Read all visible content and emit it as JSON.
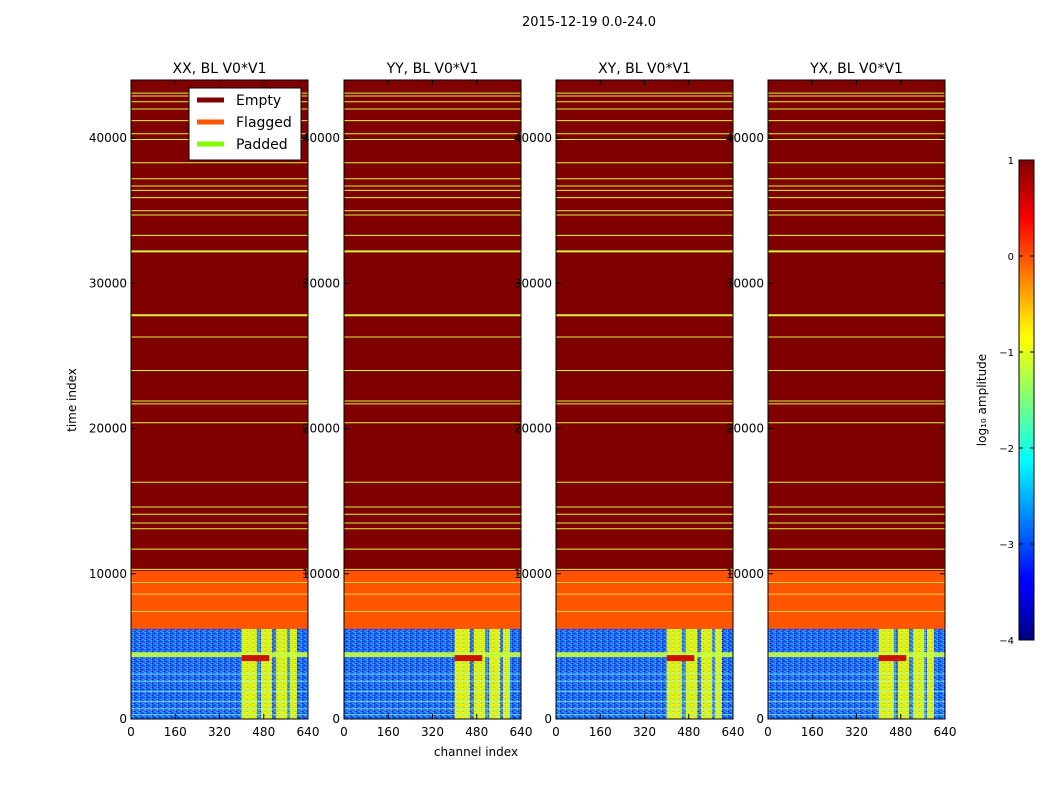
{
  "chart_data": {
    "type": "heatmap",
    "title": "2015-12-19 0.0-24.0",
    "xlabel": "channel index",
    "ylabel": "time index",
    "xlim": [
      0,
      640
    ],
    "ylim": [
      0,
      44000
    ],
    "x_ticks": [
      "0",
      "160",
      "320",
      "480",
      "640"
    ],
    "x_tick_values": [
      0,
      160,
      320,
      480,
      640
    ],
    "y_ticks": [
      "0",
      "10000",
      "20000",
      "30000",
      "40000"
    ],
    "y_tick_values": [
      0,
      10000,
      20000,
      30000,
      40000
    ],
    "panels": [
      {
        "title": "XX, BL V0*V1"
      },
      {
        "title": "YY, BL V0*V1"
      },
      {
        "title": "XY, BL V0*V1"
      },
      {
        "title": "YX, BL V0*V1"
      }
    ],
    "legend": {
      "placement": "top-right of first panel",
      "entries": [
        {
          "label": "Empty",
          "color": "#800000"
        },
        {
          "label": "Flagged",
          "color": "#ff5500"
        },
        {
          "label": "Padded",
          "color": "#7fff00"
        }
      ]
    },
    "colorbar": {
      "label": "log₁₀ amplitude",
      "range": [
        -4,
        1
      ],
      "ticks": [
        "1",
        "0",
        "−1",
        "−2",
        "−3",
        "−4"
      ],
      "tick_values": [
        1,
        0,
        -1,
        -2,
        -3,
        -4
      ],
      "colormap": "jet"
    },
    "regions": {
      "data_time_range": [
        0,
        6200
      ],
      "flagged_time_range": [
        6200,
        10200
      ],
      "empty_time_range": [
        10200,
        44000
      ],
      "high_amplitude_channel_range": [
        400,
        600
      ]
    },
    "padded_rows_time": [
      10300,
      11700,
      13100,
      13500,
      14100,
      14600,
      16300,
      20400,
      21700,
      21900,
      24000,
      26300,
      27800,
      32200,
      33300,
      34700,
      35000,
      35900,
      36400,
      36700,
      37200,
      38300,
      39900,
      40300,
      41200,
      42000,
      42500,
      42900,
      43100
    ]
  }
}
